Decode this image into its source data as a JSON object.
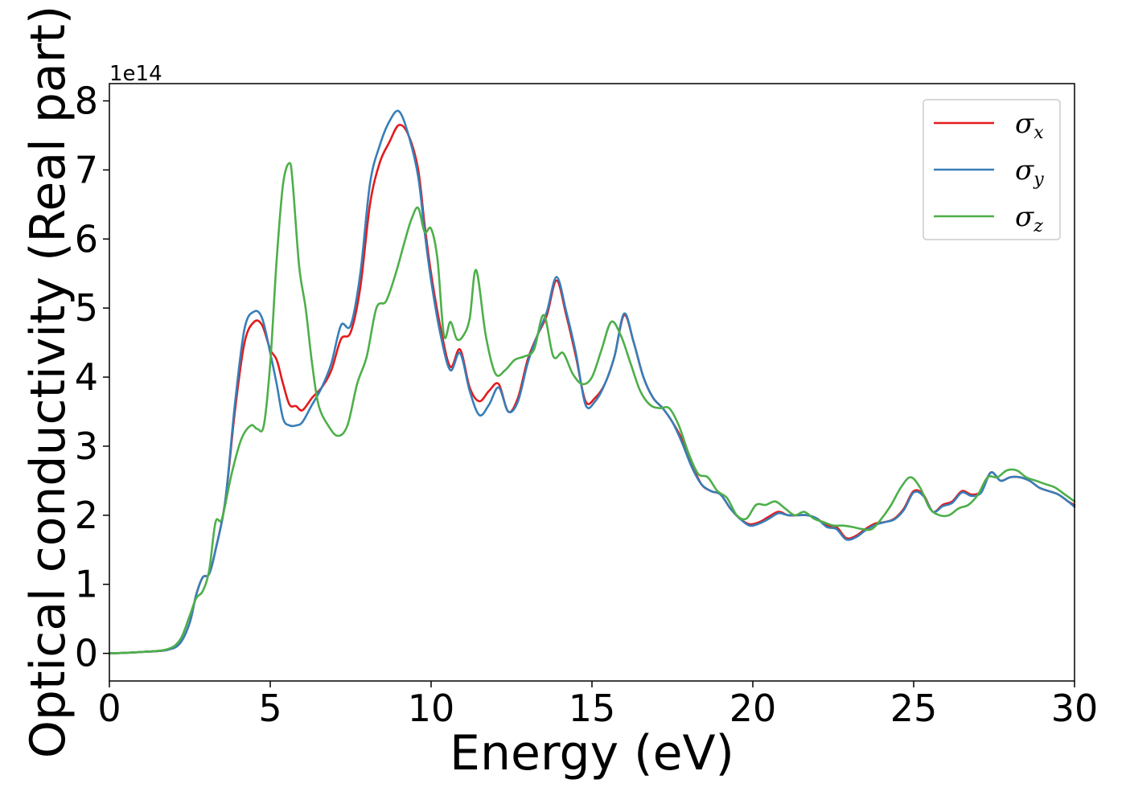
{
  "chart_data": {
    "type": "line",
    "title": "",
    "xlabel": "Energy (eV)",
    "ylabel": "Optical conductivity (Real part)",
    "y_offset_label": "1e14",
    "xlim": [
      0,
      30
    ],
    "ylim": [
      -0.4,
      8.25
    ],
    "x_ticks": [
      0,
      5,
      10,
      15,
      20,
      25,
      30
    ],
    "y_ticks": [
      0,
      1,
      2,
      3,
      4,
      5,
      6,
      7,
      8
    ],
    "grid": false,
    "legend_position": "top-right",
    "series": [
      {
        "name": "σx",
        "legend_symbol": "σ",
        "legend_subscript": "x",
        "color": "#e41a1c",
        "x": [
          0,
          1,
          1.8,
          2.2,
          2.5,
          2.7,
          2.9,
          3.1,
          3.3,
          3.6,
          3.9,
          4.2,
          4.5,
          4.75,
          5,
          5.2,
          5.4,
          5.6,
          5.8,
          6,
          6.3,
          6.6,
          6.9,
          7.2,
          7.5,
          7.8,
          8.1,
          8.4,
          8.7,
          9,
          9.3,
          9.6,
          9.8,
          10,
          10.3,
          10.6,
          10.9,
          11.2,
          11.5,
          11.8,
          12.1,
          12.4,
          12.7,
          13,
          13.3,
          13.6,
          13.9,
          14.2,
          14.5,
          14.8,
          15.1,
          15.4,
          15.7,
          16,
          16.3,
          16.6,
          16.9,
          17.2,
          17.5,
          17.8,
          18.1,
          18.4,
          18.7,
          19,
          19.3,
          19.6,
          19.9,
          20.2,
          20.5,
          20.8,
          21.1,
          21.4,
          21.7,
          22,
          22.3,
          22.6,
          22.9,
          23.2,
          23.5,
          23.8,
          24.1,
          24.4,
          24.7,
          25,
          25.3,
          25.6,
          25.9,
          26.2,
          26.5,
          26.8,
          27.1,
          27.4,
          27.7,
          28,
          28.3,
          28.6,
          28.9,
          29.2,
          29.5,
          29.8,
          30
        ],
        "y": [
          0,
          0.02,
          0.05,
          0.15,
          0.45,
          0.85,
          1.1,
          1.15,
          1.5,
          2.2,
          3.5,
          4.5,
          4.8,
          4.75,
          4.4,
          4.25,
          3.9,
          3.6,
          3.58,
          3.52,
          3.7,
          3.85,
          4.1,
          4.55,
          4.65,
          5.3,
          6.5,
          7.1,
          7.4,
          7.65,
          7.5,
          7.0,
          6.2,
          5.5,
          4.7,
          4.15,
          4.4,
          3.85,
          3.65,
          3.8,
          3.9,
          3.5,
          3.7,
          4.25,
          4.6,
          4.9,
          5.4,
          4.9,
          4.3,
          3.65,
          3.7,
          3.9,
          4.3,
          4.9,
          4.5,
          4.0,
          3.7,
          3.55,
          3.35,
          3.1,
          2.75,
          2.45,
          2.35,
          2.3,
          2.1,
          1.95,
          1.87,
          1.9,
          1.98,
          2.05,
          2.0,
          2.0,
          2.0,
          1.95,
          1.85,
          1.83,
          1.67,
          1.7,
          1.8,
          1.88,
          1.9,
          1.95,
          2.1,
          2.35,
          2.3,
          2.05,
          2.15,
          2.2,
          2.35,
          2.3,
          2.35,
          2.62,
          2.5,
          2.55,
          2.55,
          2.5,
          2.4,
          2.35,
          2.3,
          2.2,
          2.15
        ]
      },
      {
        "name": "σy",
        "legend_symbol": "σ",
        "legend_subscript": "y",
        "color": "#377eb8",
        "x": [
          0,
          1,
          1.8,
          2.2,
          2.5,
          2.7,
          2.9,
          3.1,
          3.3,
          3.6,
          3.9,
          4.2,
          4.5,
          4.75,
          5,
          5.2,
          5.4,
          5.6,
          5.8,
          6,
          6.3,
          6.6,
          6.9,
          7.2,
          7.5,
          7.8,
          8.1,
          8.4,
          8.7,
          9,
          9.3,
          9.6,
          9.8,
          10,
          10.3,
          10.6,
          10.9,
          11.2,
          11.5,
          11.8,
          12.1,
          12.4,
          12.7,
          13,
          13.3,
          13.6,
          13.9,
          14.2,
          14.5,
          14.8,
          15.1,
          15.4,
          15.7,
          16,
          16.3,
          16.6,
          16.9,
          17.2,
          17.5,
          17.8,
          18.1,
          18.4,
          18.7,
          19,
          19.3,
          19.6,
          19.9,
          20.2,
          20.5,
          20.8,
          21.1,
          21.4,
          21.7,
          22,
          22.3,
          22.6,
          22.9,
          23.2,
          23.5,
          23.8,
          24.1,
          24.4,
          24.7,
          25,
          25.3,
          25.6,
          25.9,
          26.2,
          26.5,
          26.8,
          27.1,
          27.4,
          27.7,
          28,
          28.3,
          28.6,
          28.9,
          29.2,
          29.5,
          29.8,
          30
        ],
        "y": [
          0,
          0.02,
          0.05,
          0.15,
          0.45,
          0.85,
          1.1,
          1.15,
          1.5,
          2.2,
          3.6,
          4.7,
          4.95,
          4.85,
          4.35,
          3.9,
          3.4,
          3.3,
          3.3,
          3.35,
          3.6,
          3.85,
          4.2,
          4.75,
          4.75,
          5.5,
          6.8,
          7.35,
          7.7,
          7.85,
          7.5,
          6.9,
          6.1,
          5.4,
          4.6,
          4.1,
          4.35,
          3.8,
          3.45,
          3.6,
          3.85,
          3.5,
          3.65,
          4.2,
          4.6,
          4.95,
          5.45,
          4.95,
          4.35,
          3.6,
          3.65,
          3.9,
          4.3,
          4.92,
          4.5,
          4.0,
          3.7,
          3.55,
          3.35,
          3.05,
          2.7,
          2.45,
          2.35,
          2.3,
          2.1,
          1.95,
          1.85,
          1.88,
          1.95,
          2.03,
          2.0,
          2.0,
          2.0,
          1.95,
          1.83,
          1.8,
          1.65,
          1.68,
          1.78,
          1.86,
          1.9,
          1.94,
          2.08,
          2.33,
          2.28,
          2.05,
          2.13,
          2.18,
          2.33,
          2.28,
          2.33,
          2.62,
          2.5,
          2.55,
          2.55,
          2.5,
          2.4,
          2.35,
          2.3,
          2.2,
          2.12
        ]
      },
      {
        "name": "σz",
        "legend_symbol": "σ",
        "legend_subscript": "z",
        "color": "#4daf4a",
        "x": [
          0,
          1,
          1.8,
          2.2,
          2.5,
          2.7,
          2.9,
          3.1,
          3.3,
          3.5,
          3.8,
          4.1,
          4.4,
          4.6,
          4.8,
          5,
          5.2,
          5.4,
          5.6,
          5.7,
          5.9,
          6.1,
          6.3,
          6.5,
          6.8,
          7.1,
          7.4,
          7.7,
          8,
          8.3,
          8.6,
          8.9,
          9.2,
          9.4,
          9.6,
          9.8,
          10,
          10.2,
          10.4,
          10.6,
          10.8,
          11,
          11.2,
          11.4,
          11.7,
          12,
          12.3,
          12.6,
          12.9,
          13.2,
          13.5,
          13.8,
          14.1,
          14.4,
          14.7,
          15,
          15.3,
          15.6,
          15.9,
          16.2,
          16.5,
          16.8,
          17.1,
          17.4,
          17.7,
          18,
          18.3,
          18.6,
          18.9,
          19.2,
          19.5,
          19.8,
          20.1,
          20.4,
          20.7,
          21,
          21.3,
          21.6,
          21.9,
          22.2,
          22.5,
          22.8,
          23.1,
          23.4,
          23.7,
          24,
          24.3,
          24.6,
          24.9,
          25.2,
          25.5,
          25.8,
          26.1,
          26.4,
          26.7,
          27,
          27.3,
          27.6,
          27.9,
          28.2,
          28.5,
          28.8,
          29.1,
          29.4,
          29.7,
          30
        ],
        "y": [
          0,
          0.02,
          0.06,
          0.2,
          0.55,
          0.8,
          0.9,
          1.2,
          1.9,
          1.95,
          2.6,
          3.1,
          3.3,
          3.25,
          3.3,
          4.2,
          5.7,
          6.8,
          7.1,
          6.8,
          5.6,
          5.0,
          4.2,
          3.6,
          3.3,
          3.15,
          3.3,
          3.9,
          4.3,
          5.0,
          5.1,
          5.5,
          6.0,
          6.3,
          6.45,
          6.1,
          6.15,
          5.7,
          4.6,
          4.8,
          4.55,
          4.6,
          4.85,
          5.55,
          4.6,
          4.05,
          4.1,
          4.25,
          4.3,
          4.4,
          4.9,
          4.3,
          4.35,
          4.05,
          3.9,
          4.0,
          4.4,
          4.8,
          4.6,
          4.2,
          3.8,
          3.6,
          3.55,
          3.55,
          3.3,
          2.9,
          2.6,
          2.55,
          2.35,
          2.25,
          2.0,
          1.95,
          2.15,
          2.15,
          2.2,
          2.1,
          2.0,
          2.05,
          1.95,
          1.9,
          1.85,
          1.85,
          1.83,
          1.8,
          1.8,
          1.95,
          2.15,
          2.4,
          2.55,
          2.4,
          2.1,
          2.0,
          2.0,
          2.1,
          2.15,
          2.3,
          2.55,
          2.55,
          2.65,
          2.65,
          2.55,
          2.5,
          2.45,
          2.4,
          2.3,
          2.2
        ]
      }
    ]
  }
}
